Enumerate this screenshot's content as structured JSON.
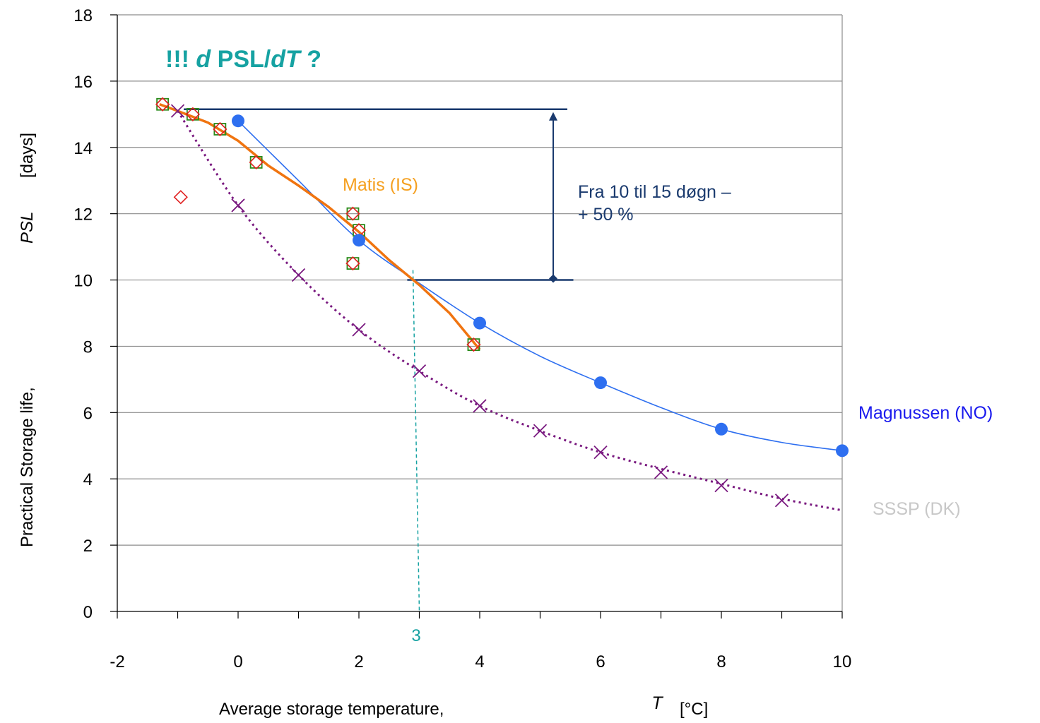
{
  "chart_data": {
    "type": "scatter",
    "title": "",
    "xlabel": {
      "prefix": "Average storage temperature,",
      "symbol": "T",
      "unit": "[°C]"
    },
    "ylabel": {
      "prefix": "Practical Storage life,",
      "symbol": "PSL",
      "unit": "[days]"
    },
    "xlim": [
      -2,
      10
    ],
    "ylim": [
      0,
      18
    ],
    "x_ticks": [
      -2,
      0,
      2,
      4,
      6,
      8,
      10
    ],
    "y_ticks": [
      0,
      2,
      4,
      6,
      8,
      10,
      12,
      14,
      16,
      18
    ],
    "grid": "horizontal",
    "series": [
      {
        "name": "Magnussen (NO)",
        "color": "#2e6ff0",
        "label_color": "#1a1aee",
        "marker": "circle",
        "points": [
          [
            0,
            14.8
          ],
          [
            2,
            11.2
          ],
          [
            4,
            8.7
          ],
          [
            6,
            6.9
          ],
          [
            8,
            5.5
          ],
          [
            10,
            4.85
          ]
        ],
        "curve": [
          [
            0,
            14.8
          ],
          [
            1,
            13.0
          ],
          [
            2,
            11.2
          ],
          [
            3,
            9.9
          ],
          [
            4,
            8.7
          ],
          [
            5,
            7.7
          ],
          [
            6,
            6.9
          ],
          [
            7,
            6.15
          ],
          [
            8,
            5.5
          ],
          [
            9,
            5.1
          ],
          [
            10,
            4.85
          ]
        ]
      },
      {
        "name": "Matis (IS)",
        "color": "#f07410",
        "label_color": "#f5a020",
        "marker": "square-diamond",
        "square_points": [
          [
            -1.25,
            15.3
          ],
          [
            -0.75,
            15.0
          ],
          [
            -0.3,
            14.55
          ],
          [
            0.3,
            13.55
          ],
          [
            1.9,
            12.0
          ],
          [
            2.0,
            11.5
          ],
          [
            1.9,
            10.5
          ],
          [
            3.9,
            8.05
          ]
        ],
        "diamond_points": [
          [
            -1.25,
            15.3
          ],
          [
            -0.75,
            15.0
          ],
          [
            -0.3,
            14.55
          ],
          [
            0.3,
            13.55
          ],
          [
            -0.95,
            12.5
          ],
          [
            1.9,
            12.0
          ],
          [
            2.0,
            11.5
          ],
          [
            1.9,
            10.5
          ],
          [
            3.9,
            8.05
          ]
        ],
        "curve": [
          [
            -1.3,
            15.3
          ],
          [
            -1.0,
            15.1
          ],
          [
            -0.5,
            14.75
          ],
          [
            0,
            14.2
          ],
          [
            0.5,
            13.45
          ],
          [
            1.0,
            12.85
          ],
          [
            1.5,
            12.2
          ],
          [
            2.0,
            11.45
          ],
          [
            2.5,
            10.6
          ],
          [
            3.0,
            9.85
          ],
          [
            3.5,
            9.0
          ],
          [
            4.0,
            7.9
          ]
        ]
      },
      {
        "name": "SSSP (DK)",
        "color": "#7a1a80",
        "label_color": "#c8c8c8",
        "marker": "x",
        "points": [
          [
            -1.0,
            15.1
          ],
          [
            0,
            12.25
          ],
          [
            1,
            10.15
          ],
          [
            2,
            8.5
          ],
          [
            3,
            7.25
          ],
          [
            4,
            6.2
          ],
          [
            5,
            5.45
          ],
          [
            6,
            4.8
          ],
          [
            7,
            4.2
          ],
          [
            8,
            3.8
          ],
          [
            9,
            3.35
          ]
        ],
        "curve": [
          [
            -1.0,
            15.1
          ],
          [
            0,
            12.25
          ],
          [
            1,
            10.15
          ],
          [
            2,
            8.5
          ],
          [
            3,
            7.25
          ],
          [
            4,
            6.2
          ],
          [
            5,
            5.45
          ],
          [
            6,
            4.8
          ],
          [
            7,
            4.3
          ],
          [
            8,
            3.85
          ],
          [
            9,
            3.4
          ],
          [
            10,
            3.05
          ]
        ]
      }
    ],
    "annotations": {
      "headline": {
        "prefix": "!!! ",
        "d1": "d",
        "mid": " PSL/",
        "dT": "dT",
        "suffix": " ?",
        "color": "#16a2a2"
      },
      "range_text_line1": "Fra 10 til 15 døgn –",
      "range_text_line2": "+ 50 %",
      "range_color": "#1a3a6e",
      "range_upper": 15.15,
      "range_lower": 10.0,
      "marker_x": 3,
      "marker_x_label": "3",
      "marker_color": "#16a2a2"
    }
  }
}
